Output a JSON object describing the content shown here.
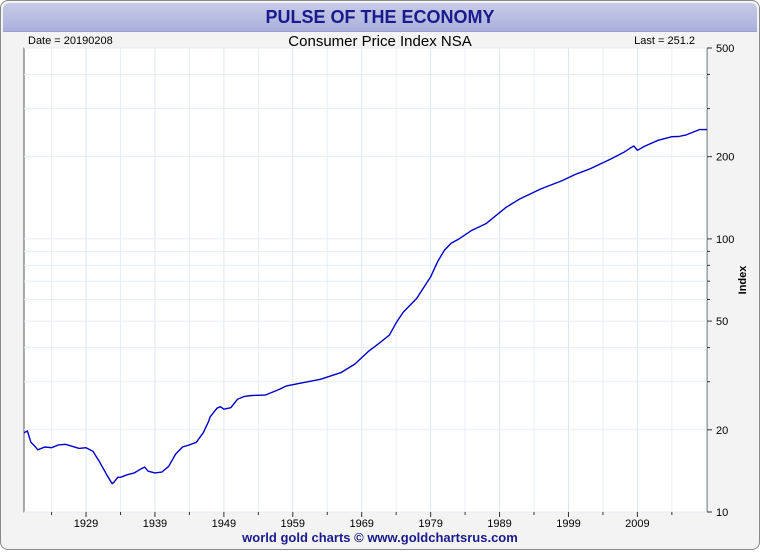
{
  "header": {
    "title": "PULSE OF THE ECONOMY"
  },
  "footer": {
    "credit": "world gold charts © www.goldchartsrus.com"
  },
  "chart_data": {
    "type": "line",
    "title": "Consumer Price Index NSA",
    "date_label": "Date = 20190208",
    "last_label": "Last = 251.2",
    "ylabel": "Index",
    "xlabel": "",
    "y_scale": "log",
    "ylim": [
      10,
      500
    ],
    "xlim": [
      1920,
      2019.1
    ],
    "grid": true,
    "x_ticks": [
      1929,
      1939,
      1949,
      1959,
      1969,
      1979,
      1989,
      1999,
      2009
    ],
    "y_ticks": [
      10,
      20,
      50,
      100,
      200,
      500
    ],
    "line_color": "#0000cc",
    "series": [
      {
        "x": [
          1920,
          1920.5,
          1921,
          1921.5,
          1922,
          1923,
          1924,
          1925,
          1926,
          1927,
          1928,
          1929,
          1930,
          1931,
          1932,
          1932.8,
          1933.1,
          1933.6,
          1934,
          1935,
          1936,
          1937,
          1937.5,
          1938,
          1939,
          1940,
          1941,
          1942,
          1943,
          1944,
          1945,
          1946,
          1946.8,
          1947,
          1948,
          1948.5,
          1949,
          1950,
          1951,
          1952,
          1953,
          1955,
          1957,
          1958,
          1960,
          1963,
          1966,
          1968,
          1970,
          1971,
          1973,
          1974,
          1975,
          1977,
          1979,
          1980,
          1981,
          1982,
          1983,
          1985,
          1987,
          1990,
          1992,
          1995,
          1998,
          2000,
          2002,
          2005,
          2007,
          2008,
          2008.5,
          2009,
          2010,
          2012,
          2014,
          2015,
          2016,
          2018,
          2019.1
        ],
        "y": [
          19.5,
          19.8,
          18,
          17.5,
          16.9,
          17.3,
          17.2,
          17.6,
          17.7,
          17.4,
          17.1,
          17.2,
          16.7,
          15.2,
          13.7,
          12.7,
          12.9,
          13.4,
          13.4,
          13.7,
          13.9,
          14.4,
          14.6,
          14.1,
          13.9,
          14.0,
          14.7,
          16.3,
          17.3,
          17.6,
          18.0,
          19.5,
          21.5,
          22.3,
          24.0,
          24.3,
          23.8,
          24.1,
          25.9,
          26.5,
          26.7,
          26.8,
          28.1,
          28.9,
          29.6,
          30.6,
          32.4,
          34.8,
          38.8,
          40.5,
          44.4,
          49.3,
          53.8,
          60.6,
          72.6,
          82.4,
          90.9,
          96.5,
          99.6,
          107.6,
          113.6,
          130.7,
          140.3,
          152.4,
          163.0,
          172.2,
          179.9,
          195.3,
          207.3,
          215.3,
          218.8,
          211.1,
          218.1,
          229.6,
          236.7,
          237.0,
          240.0,
          251.2,
          251.2
        ]
      }
    ]
  }
}
